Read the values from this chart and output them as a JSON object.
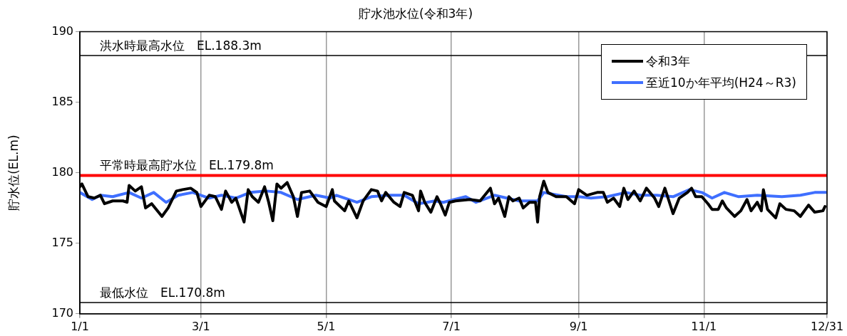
{
  "chart_data": {
    "type": "line",
    "title": "貯水池水位(令和3年)",
    "ylabel": "貯水位(EL.m)",
    "xlim": [
      "--01-01",
      "--12-31"
    ],
    "xticks": [
      {
        "value": "--01-01",
        "label": "1/1"
      },
      {
        "value": "--03-01",
        "label": "3/1"
      },
      {
        "value": "--05-01",
        "label": "5/1"
      },
      {
        "value": "--07-01",
        "label": "7/1"
      },
      {
        "value": "--09-01",
        "label": "9/1"
      },
      {
        "value": "--11-01",
        "label": "11/1"
      },
      {
        "value": "--12-31",
        "label": "12/31"
      }
    ],
    "ylim": [
      170,
      190
    ],
    "yticks": [
      170,
      175,
      180,
      185,
      190
    ],
    "grid": "x",
    "legend": "top right",
    "marker": "none",
    "line_style": "solid",
    "ref_lines": [
      {
        "axis": "y",
        "value": 188.3,
        "label": "洪水時最高水位　EL.188.3m",
        "color": "#000000"
      },
      {
        "axis": "y",
        "value": 179.8,
        "label": "平常時最高貯水位　EL.179.8m",
        "color": "#ff0000"
      },
      {
        "axis": "y",
        "value": 170.8,
        "label": "最低水位　EL.170.8m",
        "color": "#000000"
      }
    ],
    "series": [
      {
        "name": "令和3年",
        "color": "#000000",
        "x": [
          "--01-01",
          "--01-02",
          "--01-05",
          "--01-08",
          "--01-11",
          "--01-13",
          "--01-17",
          "--01-22",
          "--01-24",
          "--01-25",
          "--01-28",
          "--01-31",
          "--02-02",
          "--02-05",
          "--02-10",
          "--02-13",
          "--02-17",
          "--02-20",
          "--02-24",
          "--02-27",
          "--03-01",
          "--03-05",
          "--03-08",
          "--03-11",
          "--03-13",
          "--03-16",
          "--03-18",
          "--03-22",
          "--03-24",
          "--03-26",
          "--03-29",
          "--04-01",
          "--04-03",
          "--04-05",
          "--04-07",
          "--04-09",
          "--04-12",
          "--04-15",
          "--04-17",
          "--04-19",
          "--04-23",
          "--04-27",
          "--05-01",
          "--05-04",
          "--05-05",
          "--05-10",
          "--05-12",
          "--05-16",
          "--05-19",
          "--05-23",
          "--05-26",
          "--05-28",
          "--05-30",
          "--06-03",
          "--06-06",
          "--06-08",
          "--06-12",
          "--06-15",
          "--06-16",
          "--06-18",
          "--06-21",
          "--06-24",
          "--06-26",
          "--06-28",
          "--06-30",
          "--07-03",
          "--07-10",
          "--07-15",
          "--07-20",
          "--07-22",
          "--07-24",
          "--07-27",
          "--07-29",
          "--07-31",
          "--08-03",
          "--08-05",
          "--08-08",
          "--08-11",
          "--08-12",
          "--08-13",
          "--08-15",
          "--08-17",
          "--08-21",
          "--08-26",
          "--08-30",
          "--09-01",
          "--09-05",
          "--09-10",
          "--09-13",
          "--09-15",
          "--09-18",
          "--09-21",
          "--09-23",
          "--09-25",
          "--09-28",
          "--10-01",
          "--10-04",
          "--10-08",
          "--10-10",
          "--10-13",
          "--10-15",
          "--10-17",
          "--10-20",
          "--10-24",
          "--10-26",
          "--10-28",
          "--10-31",
          "--11-03",
          "--11-05",
          "--11-08",
          "--11-10",
          "--11-12",
          "--11-16",
          "--11-19",
          "--11-22",
          "--11-24",
          "--11-27",
          "--11-29",
          "--11-30",
          "--12-02",
          "--12-06",
          "--12-08",
          "--12-11",
          "--12-15",
          "--12-18",
          "--12-22",
          "--12-25",
          "--12-29",
          "--12-30"
        ],
        "values": [
          179.0,
          179.2,
          178.3,
          178.2,
          178.4,
          177.8,
          178.0,
          178.0,
          177.9,
          179.1,
          178.7,
          179.0,
          177.5,
          177.8,
          176.9,
          177.5,
          178.7,
          178.8,
          178.9,
          178.6,
          177.6,
          178.4,
          178.3,
          177.4,
          178.7,
          177.9,
          178.2,
          176.5,
          178.8,
          178.3,
          177.9,
          179.0,
          177.9,
          176.6,
          179.2,
          178.9,
          179.3,
          178.3,
          176.9,
          178.6,
          178.7,
          177.9,
          177.6,
          178.8,
          178.0,
          177.3,
          178.0,
          176.8,
          178.0,
          178.8,
          178.7,
          178.0,
          178.6,
          177.9,
          177.6,
          178.6,
          178.4,
          177.3,
          178.7,
          177.9,
          177.2,
          178.3,
          177.7,
          177.0,
          177.9,
          178.0,
          178.1,
          178.0,
          178.9,
          177.8,
          178.2,
          176.9,
          178.3,
          178.0,
          178.2,
          177.5,
          177.9,
          177.9,
          176.5,
          178.3,
          179.4,
          178.6,
          178.3,
          178.3,
          177.8,
          178.8,
          178.4,
          178.6,
          178.6,
          177.9,
          178.2,
          177.6,
          178.9,
          178.1,
          178.7,
          178.0,
          178.9,
          178.2,
          177.6,
          178.9,
          178.0,
          177.1,
          178.2,
          178.6,
          178.9,
          178.3,
          178.3,
          177.8,
          177.4,
          177.4,
          178.0,
          177.5,
          176.9,
          177.3,
          178.1,
          177.3,
          177.9,
          177.3,
          178.8,
          177.4,
          176.8,
          177.8,
          177.4,
          177.3,
          176.9,
          177.7,
          177.2,
          177.3,
          177.6
        ]
      },
      {
        "name": "至近10か年平均(H24～R3)",
        "color": "#3f6fff",
        "x": [
          "--01-01",
          "--01-07",
          "--01-11",
          "--01-17",
          "--01-25",
          "--01-31",
          "--02-06",
          "--02-12",
          "--02-18",
          "--02-25",
          "--03-05",
          "--03-11",
          "--03-18",
          "--03-25",
          "--04-02",
          "--04-09",
          "--04-17",
          "--04-26",
          "--05-03",
          "--05-06",
          "--05-16",
          "--05-23",
          "--06-01",
          "--06-08",
          "--06-15",
          "--06-23",
          "--06-27",
          "--07-08",
          "--07-13",
          "--07-22",
          "--08-03",
          "--08-12",
          "--08-15",
          "--08-26",
          "--09-01",
          "--09-07",
          "--09-15",
          "--09-24",
          "--10-01",
          "--10-09",
          "--10-17",
          "--10-25",
          "--10-31",
          "--11-05",
          "--11-11",
          "--11-18",
          "--11-27",
          "--12-09",
          "--12-18",
          "--12-25",
          "--12-31"
        ],
        "values": [
          178.6,
          178.1,
          178.4,
          178.3,
          178.6,
          178.2,
          178.6,
          177.9,
          178.4,
          178.6,
          178.2,
          178.4,
          178.2,
          178.6,
          178.7,
          178.6,
          178.1,
          178.4,
          178.2,
          178.4,
          177.9,
          178.3,
          178.4,
          178.4,
          177.8,
          178.0,
          177.9,
          178.3,
          177.9,
          178.4,
          178.0,
          178.0,
          178.6,
          178.3,
          178.3,
          178.2,
          178.3,
          178.6,
          178.4,
          178.4,
          178.3,
          178.8,
          178.6,
          178.2,
          178.6,
          178.3,
          178.4,
          178.3,
          178.4,
          178.6,
          178.6
        ]
      }
    ]
  }
}
